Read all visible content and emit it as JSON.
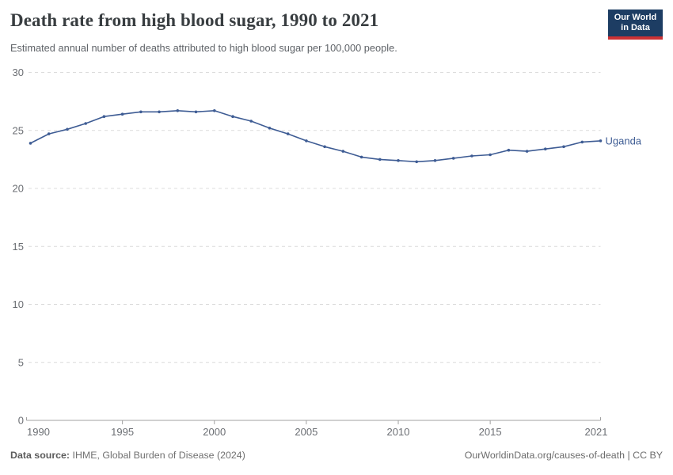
{
  "header": {
    "title": "Death rate from high blood sugar, 1990 to 2021",
    "subtitle": "Estimated annual number of deaths attributed to high blood sugar per 100,000 people.",
    "logo": {
      "line1": "Our World",
      "line2": "in Data"
    }
  },
  "chart_data": {
    "type": "line",
    "title": "Death rate from high blood sugar, 1990 to 2021",
    "subtitle": "Estimated annual number of deaths attributed to high blood sugar per 100,000 people.",
    "xlabel": "",
    "ylabel": "",
    "xlim": [
      1990,
      2021
    ],
    "ylim": [
      0,
      30
    ],
    "x_ticks": [
      1990,
      1995,
      2000,
      2005,
      2010,
      2015,
      2021
    ],
    "y_ticks": [
      0,
      5,
      10,
      15,
      20,
      25,
      30
    ],
    "grid": "horizontal-dashed",
    "legend_position": "end-of-line-label",
    "x": [
      1990,
      1991,
      1992,
      1993,
      1994,
      1995,
      1996,
      1997,
      1998,
      1999,
      2000,
      2001,
      2002,
      2003,
      2004,
      2005,
      2006,
      2007,
      2008,
      2009,
      2010,
      2011,
      2012,
      2013,
      2014,
      2015,
      2016,
      2017,
      2018,
      2019,
      2020,
      2021
    ],
    "series": [
      {
        "name": "Uganda",
        "color": "#3e5c94",
        "values": [
          23.9,
          24.7,
          25.1,
          25.6,
          26.2,
          26.4,
          26.6,
          26.6,
          26.7,
          26.6,
          26.7,
          26.2,
          25.8,
          25.2,
          24.7,
          24.1,
          23.6,
          23.2,
          22.7,
          22.5,
          22.4,
          22.3,
          22.4,
          22.6,
          22.8,
          22.9,
          23.3,
          23.2,
          23.4,
          23.6,
          24.0,
          24.1
        ]
      }
    ]
  },
  "footer": {
    "source_label": "Data source:",
    "source_text": " IHME, Global Burden of Disease (2024)",
    "credit": "OurWorldinData.org/causes-of-death | CC BY"
  },
  "colors": {
    "line": "#3e5c94",
    "gridline": "#dcdcdc",
    "axis": "#a1a1a1",
    "tick_label": "#6b6e73",
    "title": "#383d40",
    "subtitle": "#5f6368",
    "logo_bg": "#1d3d63",
    "logo_bar": "#cb3235"
  }
}
